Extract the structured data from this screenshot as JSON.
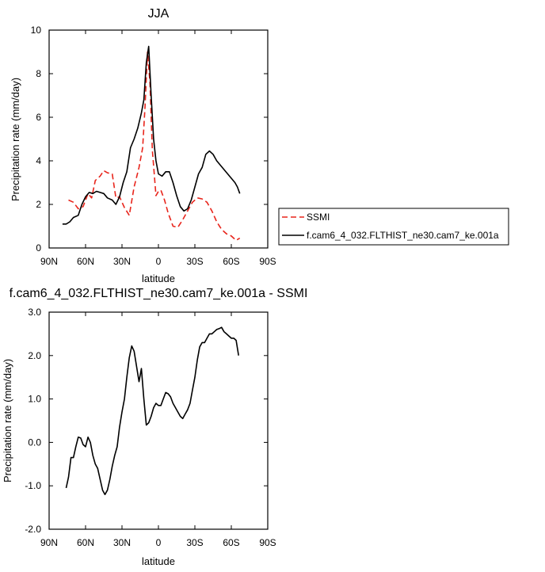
{
  "chart_data": [
    {
      "type": "line",
      "title": "JJA",
      "xlabel": "latitude",
      "ylabel": "Precipitation rate (mm/day)",
      "xlim": [
        90,
        -90
      ],
      "ylim": [
        0,
        10
      ],
      "x_tick_values": [
        90,
        60,
        30,
        0,
        -30,
        -60,
        -90
      ],
      "x_tick_labels": [
        "90N",
        "60N",
        "30N",
        "0",
        "30S",
        "60S",
        "90S"
      ],
      "y_tick_values": [
        0,
        2,
        4,
        6,
        8,
        10
      ],
      "y_tick_labels": [
        "0",
        "2",
        "4",
        "6",
        "8",
        "10"
      ],
      "legend": {
        "position": "right",
        "box": true
      },
      "series": [
        {
          "name": "SSMI",
          "color": "#e8251c",
          "dash": "dashed",
          "x": [
            74,
            70,
            66,
            62,
            58,
            55,
            52,
            48,
            45,
            42,
            38,
            35,
            32,
            28,
            24,
            20,
            16,
            13,
            11,
            9,
            7,
            5,
            2,
            0,
            -2,
            -5,
            -8,
            -12,
            -16,
            -20,
            -24,
            -28,
            -32,
            -36,
            -40,
            -44,
            -48,
            -52,
            -56,
            -60,
            -64,
            -67
          ],
          "values": [
            2.2,
            2.1,
            1.8,
            1.9,
            2.5,
            2.3,
            3.1,
            3.3,
            3.55,
            3.45,
            3.4,
            2.3,
            2.35,
            1.85,
            1.5,
            2.8,
            3.7,
            4.6,
            6.5,
            9.0,
            7.6,
            4.5,
            2.4,
            2.6,
            2.65,
            2.2,
            1.6,
            1.0,
            0.95,
            1.3,
            1.7,
            2.1,
            2.3,
            2.25,
            2.1,
            1.7,
            1.2,
            0.85,
            0.65,
            0.55,
            0.35,
            0.45
          ]
        },
        {
          "name": "f.cam6_4_032.FLTHIST_ne30.cam7_ke.001a",
          "color": "#000000",
          "dash": "solid",
          "x": [
            79,
            76,
            73,
            70,
            66,
            63,
            60,
            57,
            54,
            51,
            48,
            45,
            42,
            38,
            35,
            32,
            29,
            26,
            23,
            20,
            17,
            14,
            12,
            10,
            8,
            6,
            4,
            2,
            0,
            -3,
            -6,
            -9,
            -12,
            -15,
            -18,
            -21,
            -24,
            -27,
            -30,
            -33,
            -36,
            -39,
            -42,
            -45,
            -48,
            -51,
            -54,
            -57,
            -60,
            -63,
            -65,
            -67
          ],
          "values": [
            1.1,
            1.1,
            1.2,
            1.4,
            1.5,
            2.0,
            2.35,
            2.55,
            2.5,
            2.6,
            2.55,
            2.5,
            2.3,
            2.2,
            2.0,
            2.35,
            3.0,
            3.5,
            4.6,
            5.0,
            5.5,
            6.2,
            6.8,
            8.5,
            9.25,
            7.0,
            5.0,
            4.0,
            3.4,
            3.3,
            3.5,
            3.5,
            3.0,
            2.4,
            1.9,
            1.7,
            1.8,
            2.2,
            2.8,
            3.4,
            3.7,
            4.3,
            4.45,
            4.3,
            4.0,
            3.8,
            3.6,
            3.4,
            3.2,
            3.0,
            2.8,
            2.5
          ]
        }
      ]
    },
    {
      "type": "line",
      "title": "f.cam6_4_032.FLTHIST_ne30.cam7_ke.001a - SSMI",
      "xlabel": "latitude",
      "ylabel": "Precipitation rate (mm/day)",
      "xlim": [
        90,
        -90
      ],
      "ylim": [
        -2,
        3
      ],
      "x_tick_values": [
        90,
        60,
        30,
        0,
        -30,
        -60,
        -90
      ],
      "x_tick_labels": [
        "90N",
        "60N",
        "30N",
        "0",
        "30S",
        "60S",
        "90S"
      ],
      "y_tick_values": [
        -2,
        -1,
        0,
        1,
        2,
        3
      ],
      "y_tick_labels": [
        "-2.0",
        "-1.0",
        "0.0",
        "1.0",
        "2.0",
        "3.0"
      ],
      "series": [
        {
          "color": "#000000",
          "dash": "solid",
          "x": [
            76,
            74,
            72,
            70,
            68,
            66,
            64,
            62,
            60,
            58,
            56,
            54,
            52,
            50,
            48,
            46,
            44,
            42,
            40,
            38,
            36,
            34,
            32,
            30,
            28,
            26,
            24,
            22,
            20,
            18,
            16,
            14,
            12,
            10,
            8,
            6,
            4,
            2,
            0,
            -2,
            -4,
            -6,
            -8,
            -10,
            -12,
            -14,
            -16,
            -18,
            -20,
            -22,
            -24,
            -26,
            -28,
            -30,
            -32,
            -34,
            -36,
            -38,
            -40,
            -42,
            -44,
            -46,
            -48,
            -50,
            -52,
            -54,
            -56,
            -58,
            -60,
            -62,
            -64,
            -66
          ],
          "values": [
            -1.05,
            -0.8,
            -0.35,
            -0.35,
            -0.1,
            0.12,
            0.1,
            -0.05,
            -0.1,
            0.12,
            0.0,
            -0.3,
            -0.5,
            -0.6,
            -0.85,
            -1.1,
            -1.2,
            -1.1,
            -0.85,
            -0.55,
            -0.3,
            -0.1,
            0.35,
            0.7,
            1.0,
            1.5,
            1.95,
            2.22,
            2.1,
            1.75,
            1.4,
            1.7,
            1.0,
            0.4,
            0.45,
            0.6,
            0.8,
            0.9,
            0.85,
            0.85,
            1.0,
            1.15,
            1.12,
            1.05,
            0.9,
            0.8,
            0.7,
            0.6,
            0.55,
            0.65,
            0.75,
            0.9,
            1.2,
            1.5,
            1.9,
            2.2,
            2.3,
            2.3,
            2.4,
            2.5,
            2.5,
            2.55,
            2.6,
            2.62,
            2.65,
            2.55,
            2.5,
            2.45,
            2.4,
            2.4,
            2.35,
            2.0
          ]
        }
      ]
    }
  ]
}
